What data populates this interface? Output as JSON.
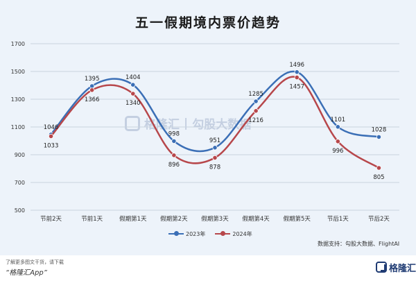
{
  "title": "五一假期境内票价趋势",
  "source_text": "数据支持：勾股大数据、FlightAI",
  "promo_text": "了解更多图文干货，请下载",
  "app_text": "“格隆汇App”",
  "brand_name": "格隆汇",
  "watermark": {
    "brand": "格隆汇",
    "divider": "|",
    "partner": "勾股大数据"
  },
  "chart_data": {
    "type": "line",
    "title": "五一假期境内票价趋势",
    "categories": [
      "节前2天",
      "节前1天",
      "假期第1天",
      "假期第2天",
      "假期第3天",
      "假期第4天",
      "假期第5天",
      "节后1天",
      "节后2天"
    ],
    "y_ticks": [
      500,
      700,
      900,
      1100,
      1300,
      1500,
      1700
    ],
    "ylim": [
      500,
      1700
    ],
    "grid": true,
    "legend_position": "bottom",
    "series": [
      {
        "name": "2023年",
        "color": "#3b6fb6",
        "values": [
          1046,
          1395,
          1404,
          998,
          951,
          1285,
          1496,
          1101,
          1028
        ]
      },
      {
        "name": "2024年",
        "color": "#b7474b",
        "values": [
          1033,
          1366,
          1340,
          896,
          878,
          1216,
          1457,
          996,
          805
        ]
      }
    ]
  }
}
